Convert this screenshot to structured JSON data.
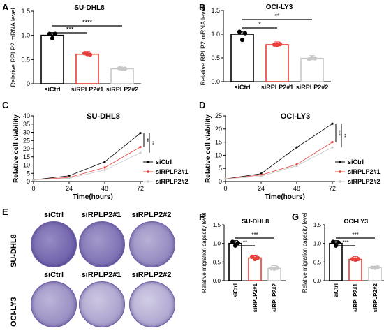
{
  "panel_letters": {
    "A": "A",
    "B": "B",
    "C": "C",
    "D": "D",
    "E": "E",
    "F": "F",
    "G": "G"
  },
  "colors": {
    "siCtrl": "#000000",
    "siRPLP2#1": "#e8403a",
    "siRPLP2#2": "#c8c8c8",
    "well_purple": "#6a5aa8"
  },
  "chart_data": [
    {
      "panel": "A",
      "type": "bar",
      "title": "SU-DHL8",
      "xlabel": "",
      "ylabel": "Relative RPLP2 mRNA level",
      "categories": [
        "siCtrl",
        "siRPLP2#1",
        "siRPLP2#2"
      ],
      "values": [
        1.0,
        0.61,
        0.31
      ],
      "points": [
        [
          1.03,
          0.94,
          1.03
        ],
        [
          0.63,
          0.61,
          0.6
        ],
        [
          0.32,
          0.31,
          0.31
        ]
      ],
      "ylim": [
        0,
        1.5
      ],
      "yticks": [
        "0",
        "0.5",
        "1.0",
        "1.5"
      ],
      "significance": [
        {
          "from": 0,
          "to": 1,
          "label": "***"
        },
        {
          "from": 0,
          "to": 2,
          "label": "****"
        }
      ],
      "grid": false
    },
    {
      "panel": "B",
      "type": "bar",
      "title": "OCI-LY3",
      "xlabel": "",
      "ylabel": "Relative RPLP2 mRNA level",
      "categories": [
        "siCtrl",
        "siRPLP2#1",
        "siRPLP2#2"
      ],
      "values": [
        1.0,
        0.78,
        0.49
      ],
      "points": [
        [
          1.05,
          0.88,
          1.02
        ],
        [
          0.78,
          0.77,
          0.79
        ],
        [
          0.47,
          0.5,
          0.49
        ]
      ],
      "ylim": [
        0,
        1.5
      ],
      "yticks": [
        "0.0",
        "0.5",
        "1.0",
        "1.5"
      ],
      "significance": [
        {
          "from": 0,
          "to": 1,
          "label": "*"
        },
        {
          "from": 0,
          "to": 2,
          "label": "**"
        }
      ],
      "grid": false
    },
    {
      "panel": "C",
      "type": "line",
      "title": "SU-DHL8",
      "xlabel": "Time(hours)",
      "ylabel": "Relative cell viability",
      "x": [
        0,
        24,
        48,
        72
      ],
      "series": [
        {
          "name": "siCtrl",
          "values": [
            1,
            3.5,
            12,
            29.5
          ]
        },
        {
          "name": "siRPLP2#1",
          "values": [
            1,
            2.5,
            8.5,
            21
          ]
        },
        {
          "name": "siRPLP2#2",
          "values": [
            1,
            2,
            7,
            17.5
          ]
        }
      ],
      "xticks": [
        "0",
        "24",
        "48",
        "72"
      ],
      "yticks": [
        "0",
        "5",
        "10",
        "15",
        "20",
        "25",
        "30",
        "35",
        "40"
      ],
      "ylim": [
        0,
        40
      ],
      "xlim": [
        0,
        80
      ],
      "legend": "right",
      "significance": [
        {
          "label": "**"
        },
        {
          "label": "**"
        }
      ],
      "grid": false
    },
    {
      "panel": "D",
      "type": "line",
      "title": "OCI-LY3",
      "xlabel": "Time(hours)",
      "ylabel": "Relative cell viability",
      "x": [
        0,
        24,
        48,
        72
      ],
      "series": [
        {
          "name": "siCtrl",
          "values": [
            1,
            3,
            13,
            22
          ]
        },
        {
          "name": "siRPLP2#1",
          "values": [
            1,
            2.5,
            6.5,
            15
          ]
        },
        {
          "name": "siRPLP2#2",
          "values": [
            1,
            2,
            6,
            13
          ]
        }
      ],
      "xticks": [
        "0",
        "24",
        "48",
        "72"
      ],
      "yticks": [
        "0",
        "5",
        "10",
        "15",
        "20",
        "25"
      ],
      "ylim": [
        0,
        25
      ],
      "xlim": [
        0,
        80
      ],
      "legend": "right",
      "significance": [
        {
          "label": "***"
        },
        {
          "label": "**"
        }
      ],
      "grid": false
    },
    {
      "panel": "F",
      "type": "bar",
      "title": "SU-DHL8",
      "xlabel": "",
      "ylabel": "Relative migration capacity level",
      "categories": [
        "siCtrl",
        "siRPLP2#1",
        "siRPLP2#2"
      ],
      "values": [
        1.0,
        0.61,
        0.33
      ],
      "points": [
        [
          1.04,
          0.94,
          1.01
        ],
        [
          0.64,
          0.58,
          0.61
        ],
        [
          0.33,
          0.32,
          0.34
        ]
      ],
      "ylim": [
        0,
        1.5
      ],
      "yticks": [
        "0.0",
        "0.5",
        "1.0",
        "1.5"
      ],
      "significance": [
        {
          "from": 0,
          "to": 1,
          "label": "**"
        },
        {
          "from": 0,
          "to": 2,
          "label": "***"
        }
      ],
      "grid": false
    },
    {
      "panel": "G",
      "type": "bar",
      "title": "OCI-LY3",
      "xlabel": "",
      "ylabel": "Relative migration capacity level",
      "categories": [
        "siCtrl",
        "siRPLP2#1",
        "siRPLP2#2"
      ],
      "values": [
        1.0,
        0.57,
        0.35
      ],
      "points": [
        [
          1.04,
          0.94,
          1.02
        ],
        [
          0.58,
          0.56,
          0.58
        ],
        [
          0.35,
          0.34,
          0.36
        ]
      ],
      "ylim": [
        0,
        1.5
      ],
      "yticks": [
        "0.0",
        "0.5",
        "1.0",
        "1.5"
      ],
      "significance": [
        {
          "from": 0,
          "to": 1,
          "label": "***"
        },
        {
          "from": 0,
          "to": 2,
          "label": "***"
        }
      ],
      "grid": false
    }
  ],
  "panel_e": {
    "columns": [
      "siCtrl",
      "siRPLP2#1",
      "siRPLP2#2"
    ],
    "rows": [
      {
        "label": "SU-DHL8",
        "density": [
          1.0,
          0.85,
          0.6
        ]
      },
      {
        "label": "OCI-LY3",
        "density": [
          0.55,
          0.35,
          0.28
        ]
      }
    ]
  }
}
